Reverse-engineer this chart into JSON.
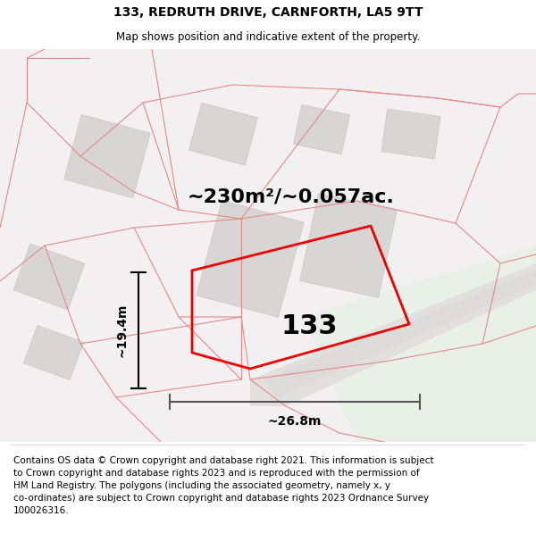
{
  "title": "133, REDRUTH DRIVE, CARNFORTH, LA5 9TT",
  "subtitle": "Map shows position and indicative extent of the property.",
  "area_label": "~230m²/~0.057ac.",
  "number_label": "133",
  "width_label": "~26.8m",
  "height_label": "~19.4m",
  "footer_text": "Contains OS data © Crown copyright and database right 2021. This information is subject\nto Crown copyright and database rights 2023 and is reproduced with the permission of\nHM Land Registry. The polygons (including the associated geometry, namely x, y\nco-ordinates) are subject to Crown copyright and database rights 2023 Ordnance Survey\n100026316.",
  "title_fontsize": 10,
  "subtitle_fontsize": 8.5,
  "area_fontsize": 16,
  "number_fontsize": 22,
  "dim_fontsize": 10,
  "footer_fontsize": 7.5,
  "map_bg": "#f0eeee",
  "building_color": "#d8d5d5",
  "building_edge": "#c8c5c5",
  "boundary_color": "#e88888",
  "highlight_color": "#ee0000",
  "green_color": "#e8f0e8"
}
